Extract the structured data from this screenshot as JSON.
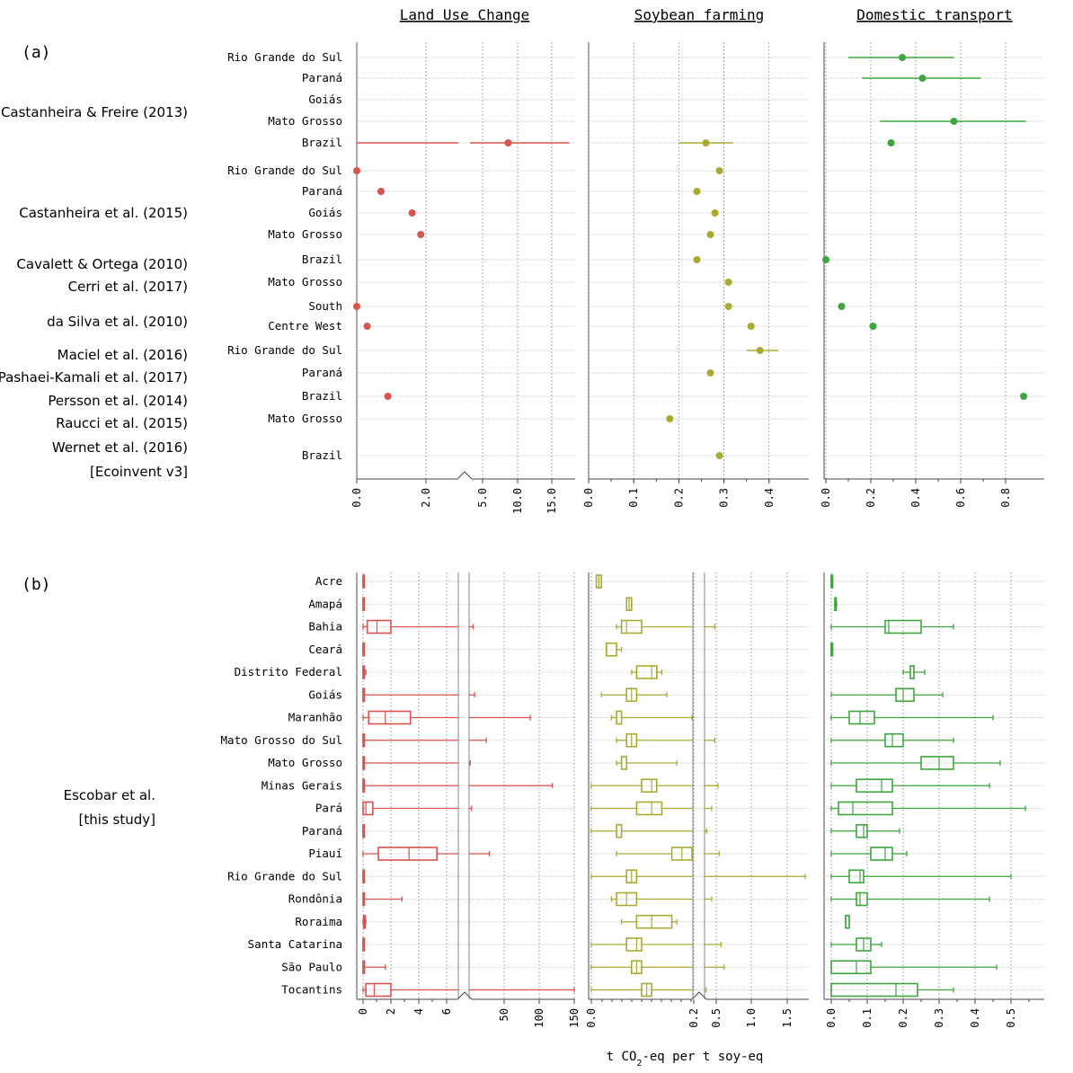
{
  "figure": {
    "label_a": "(a)",
    "label_b": "(b)",
    "col_titles": [
      "Land Use Change",
      "Soybean farming",
      "Domestic transport"
    ],
    "xlabel_main": "t CO",
    "xlabel_sub": "2",
    "xlabel_rest": "-eq per t soy-eq"
  },
  "colors": {
    "luc": "#d9534f",
    "soy": "#aaaa33",
    "tra": "#3ea63e"
  },
  "chart_data": [
    {
      "type": "scatter",
      "panel": "a",
      "description": "Literature estimates (point with optional range) per study and region",
      "groups": [
        {
          "study": "Castanheira & Freire (2013)"
        },
        {
          "study": "Castanheira et al. (2015)"
        },
        {
          "study": "Cavalett & Ortega (2010)"
        },
        {
          "study": "Cerri et al. (2017)"
        },
        {
          "study": "da Silva et al. (2010)"
        },
        {
          "study": "Maciel et al. (2016)"
        },
        {
          "study": "Pashaei-Kamali et al. (2017)"
        },
        {
          "study": "Persson et al. (2014)"
        },
        {
          "study": "Raucci et al. (2015)"
        },
        {
          "study": "Wernet et al. (2016)",
          "study2": "[Ecoinvent v3]"
        }
      ],
      "rows": [
        {
          "label": "Rio Grande do Sul",
          "luc": null,
          "soy": null,
          "tra": {
            "v": 0.34,
            "lo": 0.1,
            "hi": 0.57
          }
        },
        {
          "label": "Paraná",
          "luc": null,
          "soy": null,
          "tra": {
            "v": 0.43,
            "lo": 0.16,
            "hi": 0.69
          }
        },
        {
          "label": "Goiás",
          "luc": null,
          "soy": null,
          "tra": null
        },
        {
          "label": "Mato Grosso",
          "luc": null,
          "soy": null,
          "tra": {
            "v": 0.57,
            "lo": 0.24,
            "hi": 0.89
          }
        },
        {
          "label": "Brazil",
          "luc": {
            "v": 8.0,
            "lo": 0.0,
            "hi": 16.0
          },
          "soy": {
            "v": 0.26,
            "lo": 0.2,
            "hi": 0.32
          },
          "tra": {
            "v": 0.29
          }
        },
        {
          "label": "Rio Grande do Sul",
          "luc": {
            "v": 0.0
          },
          "soy": {
            "v": 0.29
          },
          "tra": null
        },
        {
          "label": "Paraná",
          "luc": {
            "v": 0.7
          },
          "soy": {
            "v": 0.24
          },
          "tra": null
        },
        {
          "label": "Goiás",
          "luc": {
            "v": 1.6
          },
          "soy": {
            "v": 0.28
          },
          "tra": null
        },
        {
          "label": "Mato Grosso",
          "luc": {
            "v": 1.85
          },
          "soy": {
            "v": 0.27
          },
          "tra": null
        },
        {
          "label": "Brazil",
          "luc": null,
          "soy": {
            "v": 0.24
          },
          "tra": {
            "v": 0.0
          }
        },
        {
          "label": "Mato Grosso",
          "luc": null,
          "soy": {
            "v": 0.31
          },
          "tra": null
        },
        {
          "label": "South",
          "luc": {
            "v": 0.0
          },
          "soy": {
            "v": 0.31
          },
          "tra": {
            "v": 0.07
          }
        },
        {
          "label": "Centre West",
          "luc": {
            "v": 0.3
          },
          "soy": {
            "v": 0.36
          },
          "tra": {
            "v": 0.21
          }
        },
        {
          "label": "Rio Grande do Sul",
          "luc": null,
          "soy": {
            "v": 0.38,
            "lo": 0.35,
            "hi": 0.42
          },
          "tra": null
        },
        {
          "label": "Paraná",
          "luc": null,
          "soy": {
            "v": 0.27
          },
          "tra": null
        },
        {
          "label": "Brazil",
          "luc": {
            "v": 0.9
          },
          "soy": null,
          "tra": {
            "v": 0.88
          }
        },
        {
          "label": "Mato Grosso",
          "luc": null,
          "soy": {
            "v": 0.18
          },
          "tra": null
        },
        {
          "label": "Brazil",
          "luc": null,
          "soy": {
            "v": 0.29
          },
          "tra": null
        }
      ],
      "axes": {
        "luc": {
          "ticks": [
            "0.0",
            "2.0",
            "5.0",
            "10.0",
            "15.0"
          ],
          "range": [
            0,
            17
          ],
          "broken": true
        },
        "soy": {
          "ticks": [
            "0.0",
            "0.1",
            "0.2",
            "0.3",
            "0.4"
          ],
          "range": [
            0,
            0.47
          ]
        },
        "tra": {
          "ticks": [
            "0.0",
            "0.2",
            "0.4",
            "0.6",
            "0.8"
          ],
          "range": [
            0,
            0.97
          ]
        }
      }
    },
    {
      "type": "box",
      "panel": "b",
      "study": "Escobar et al.",
      "study2": "[this study]",
      "states": [
        "Acre",
        "Amapá",
        "Bahia",
        "Ceará",
        "Distrito Federal",
        "Goiás",
        "Maranhão",
        "Mato Grosso do Sul",
        "Mato Grosso",
        "Minas Gerais",
        "Pará",
        "Paraná",
        "Piauí",
        "Rio Grande do Sul",
        "Rondônia",
        "Roraima",
        "Santa Catarina",
        "São Paulo",
        "Tocantins"
      ],
      "luc": [
        [
          0,
          0,
          0,
          0,
          0.05
        ],
        [
          0,
          0,
          0,
          0,
          0.02
        ],
        [
          0,
          0.3,
          1.0,
          2.0,
          12
        ],
        [
          0,
          0,
          0,
          0,
          0
        ],
        [
          0,
          0,
          0,
          0.1,
          0.2
        ],
        [
          0,
          0,
          0,
          0.1,
          14
        ],
        [
          0,
          0.4,
          1.6,
          3.4,
          90
        ],
        [
          0,
          0,
          0,
          0.1,
          30
        ],
        [
          0,
          0,
          0.05,
          0.1,
          8
        ],
        [
          0,
          0,
          0,
          0.05,
          120
        ],
        [
          0,
          0,
          0.2,
          0.7,
          10
        ],
        [
          0,
          0,
          0,
          0,
          0.05
        ],
        [
          0,
          1.1,
          3.3,
          5.3,
          34
        ],
        [
          0,
          0,
          0,
          0,
          0.05
        ],
        [
          0,
          0,
          0.05,
          0.1,
          2.8
        ],
        [
          0,
          0.05,
          0.1,
          0.15,
          0.2
        ],
        [
          0,
          0,
          0,
          0,
          0.05
        ],
        [
          0,
          0,
          0,
          0.02,
          1.6
        ],
        [
          0,
          0.2,
          0.8,
          2.0,
          150
        ]
      ],
      "soy": [
        [
          0.01,
          0.01,
          0.015,
          0.02,
          0.02
        ],
        [
          0.07,
          0.07,
          0.075,
          0.08,
          0.08
        ],
        [
          0.05,
          0.06,
          0.07,
          0.1,
          0.35
        ],
        [
          0.03,
          0.03,
          0.03,
          0.05,
          0.06
        ],
        [
          0.08,
          0.09,
          0.12,
          0.13,
          0.14
        ],
        [
          0.02,
          0.07,
          0.08,
          0.09,
          0.15
        ],
        [
          0.04,
          0.05,
          0.06,
          0.06,
          0.2
        ],
        [
          0.05,
          0.07,
          0.08,
          0.09,
          0.35
        ],
        [
          0.05,
          0.06,
          0.06,
          0.07,
          0.17
        ],
        [
          0,
          0.1,
          0.12,
          0.13,
          0.4
        ],
        [
          0,
          0.09,
          0.12,
          0.14,
          0.3
        ],
        [
          0,
          0.05,
          0.06,
          0.06,
          0.22
        ],
        [
          0.05,
          0.16,
          0.18,
          0.2,
          0.42
        ],
        [
          0,
          0.07,
          0.08,
          0.09,
          1.8
        ],
        [
          0.04,
          0.05,
          0.07,
          0.09,
          0.3
        ],
        [
          0.06,
          0.09,
          0.12,
          0.16,
          0.17
        ],
        [
          0,
          0.07,
          0.09,
          0.1,
          0.45
        ],
        [
          0,
          0.08,
          0.09,
          0.1,
          0.5
        ],
        [
          0,
          0.1,
          0.11,
          0.12,
          0.21
        ]
      ],
      "tra": [
        [
          0,
          0,
          0,
          0,
          0.002
        ],
        [
          0.01,
          0.01,
          0.01,
          0.01,
          0.015
        ],
        [
          0,
          0.15,
          0.16,
          0.25,
          0.34
        ],
        [
          0,
          0,
          0,
          0,
          0.002
        ],
        [
          0.2,
          0.22,
          0.23,
          0.23,
          0.26
        ],
        [
          0,
          0.18,
          0.2,
          0.23,
          0.31
        ],
        [
          0,
          0.05,
          0.08,
          0.12,
          0.45
        ],
        [
          0,
          0.15,
          0.17,
          0.2,
          0.34
        ],
        [
          0,
          0.25,
          0.3,
          0.34,
          0.47
        ],
        [
          0,
          0.07,
          0.14,
          0.17,
          0.44
        ],
        [
          0,
          0.02,
          0.06,
          0.17,
          0.54
        ],
        [
          0,
          0.07,
          0.09,
          0.1,
          0.19
        ],
        [
          0,
          0.11,
          0.15,
          0.17,
          0.21
        ],
        [
          0,
          0.05,
          0.08,
          0.09,
          0.5
        ],
        [
          0,
          0.07,
          0.08,
          0.1,
          0.44
        ],
        [
          0.04,
          0.04,
          0.04,
          0.05,
          0.05
        ],
        [
          0,
          0.07,
          0.09,
          0.11,
          0.14
        ],
        [
          0,
          0,
          0.07,
          0.11,
          0.46
        ],
        [
          0,
          0,
          0.18,
          0.24,
          0.34
        ]
      ],
      "axes": {
        "luc": {
          "ticks": [
            "0",
            "2",
            "4",
            "6",
            "50",
            "100",
            "150"
          ],
          "broken": true
        },
        "soy": {
          "ticks": [
            "0.0",
            "0.2",
            "0.5",
            "1.0",
            "1.5"
          ],
          "broken": true
        },
        "tra": {
          "ticks": [
            "0.0",
            "0.1",
            "0.2",
            "0.3",
            "0.4",
            "0.5"
          ]
        }
      }
    }
  ]
}
